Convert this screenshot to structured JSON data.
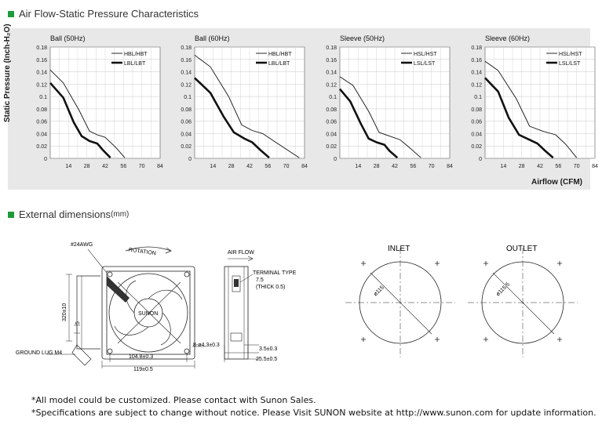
{
  "section1": {
    "title": "Air Flow-Static Pressure Characteristics"
  },
  "ylabel": "Static Pressure (Inch-H₂O)",
  "xlabel": "Airflow (CFM)",
  "chart_data": [
    {
      "type": "line",
      "title": "Ball (50Hz)",
      "xlim": [
        0,
        84
      ],
      "ylim": [
        0,
        0.18
      ],
      "xticks": [
        14,
        28,
        42,
        56,
        70,
        84
      ],
      "yticks": [
        0,
        0.02,
        0.04,
        0.06,
        0.08,
        0.1,
        0.12,
        0.14,
        0.16,
        0.18
      ],
      "grid": true,
      "legend": "top-right",
      "series": [
        {
          "name": "HBL/HBT",
          "x": [
            0,
            10,
            22,
            30,
            36,
            42,
            50,
            57
          ],
          "y": [
            0.143,
            0.122,
            0.078,
            0.044,
            0.038,
            0.034,
            0.018,
            0.001
          ]
        },
        {
          "name": "LBL/LBT",
          "x": [
            0,
            10,
            18,
            24,
            30,
            36,
            40,
            46
          ],
          "y": [
            0.122,
            0.098,
            0.058,
            0.036,
            0.028,
            0.024,
            0.014,
            0.001
          ]
        }
      ]
    },
    {
      "type": "line",
      "title": "Ball (60Hz)",
      "xlim": [
        0,
        84
      ],
      "ylim": [
        0,
        0.18
      ],
      "xticks": [
        14,
        28,
        42,
        56,
        70,
        84
      ],
      "yticks": [
        0,
        0.02,
        0.04,
        0.06,
        0.08,
        0.1,
        0.12,
        0.14,
        0.16,
        0.18
      ],
      "grid": true,
      "legend": "top-right",
      "series": [
        {
          "name": "HBL/HBT",
          "x": [
            0,
            12,
            26,
            36,
            44,
            52,
            62,
            72,
            80
          ],
          "y": [
            0.167,
            0.148,
            0.1,
            0.054,
            0.045,
            0.04,
            0.026,
            0.012,
            0.001
          ]
        },
        {
          "name": "LBL/LBT",
          "x": [
            0,
            12,
            22,
            30,
            38,
            44,
            50,
            57
          ],
          "y": [
            0.13,
            0.106,
            0.068,
            0.042,
            0.032,
            0.026,
            0.014,
            0.001
          ]
        }
      ]
    },
    {
      "type": "line",
      "title": "Sleeve (50Hz)",
      "xlim": [
        0,
        84
      ],
      "ylim": [
        0,
        0.18
      ],
      "xticks": [
        14,
        28,
        42,
        56,
        70,
        84
      ],
      "yticks": [
        0,
        0.02,
        0.04,
        0.06,
        0.08,
        0.1,
        0.12,
        0.14,
        0.16,
        0.18
      ],
      "grid": true,
      "legend": "top-right",
      "series": [
        {
          "name": "HSL/HST",
          "x": [
            0,
            10,
            22,
            30,
            38,
            46,
            54,
            62
          ],
          "y": [
            0.132,
            0.118,
            0.076,
            0.042,
            0.036,
            0.03,
            0.016,
            0.001
          ]
        },
        {
          "name": "LSL/LST",
          "x": [
            0,
            8,
            16,
            22,
            28,
            34,
            38,
            44
          ],
          "y": [
            0.112,
            0.092,
            0.056,
            0.032,
            0.026,
            0.022,
            0.012,
            0.001
          ]
        }
      ]
    },
    {
      "type": "line",
      "title": "Sleeve (60Hz)",
      "xlim": [
        0,
        84
      ],
      "ylim": [
        0,
        0.18
      ],
      "xticks": [
        14,
        28,
        42,
        56,
        70,
        84
      ],
      "yticks": [
        0,
        0.02,
        0.04,
        0.06,
        0.08,
        0.1,
        0.12,
        0.14,
        0.16,
        0.18
      ],
      "grid": true,
      "legend": "top-right",
      "series": [
        {
          "name": "HSL/HST",
          "x": [
            0,
            10,
            24,
            34,
            44,
            54,
            62,
            70
          ],
          "y": [
            0.157,
            0.142,
            0.096,
            0.052,
            0.044,
            0.038,
            0.022,
            0.001
          ]
        },
        {
          "name": "LSL/LST",
          "x": [
            0,
            10,
            18,
            26,
            34,
            40,
            46,
            52
          ],
          "y": [
            0.13,
            0.108,
            0.066,
            0.038,
            0.03,
            0.024,
            0.012,
            0.001
          ]
        }
      ]
    }
  ],
  "section2": {
    "title": "External dimensions",
    "unit": "(mm)"
  },
  "dims": {
    "awg": "#24AWG",
    "rotation": "ROTATION",
    "brand": "SUNON",
    "lead_length": "320±10",
    "lead_strip": "5",
    "ground_lug": "GROUND LUG M4",
    "hole_spacing": "104.8±0.3",
    "frame_width": "119±0.5",
    "holes": "8-ø4.3±0.3",
    "air_flow": "AIR FLOW",
    "terminal_type": "TERMINAL TYPE",
    "terminal_size": "7.5",
    "terminal_thick": "(THICK 0.5)",
    "flange": "3.5±0.3",
    "depth": "25.5±0.5",
    "inlet": "INLET",
    "inlet_dia": "ø115",
    "outlet": "OUTLET",
    "outlet_dia": "ø115.5"
  },
  "footnotes": {
    "line1": "*All model could be customized. Please contact with Sunon Sales.",
    "line2": "*Specifications are subject to change without notice. Please  Visit SUNON website at http://www.sunon.com for update information."
  },
  "colors": {
    "accent": "#1f9a3a",
    "panel": "#e8e8e8"
  }
}
